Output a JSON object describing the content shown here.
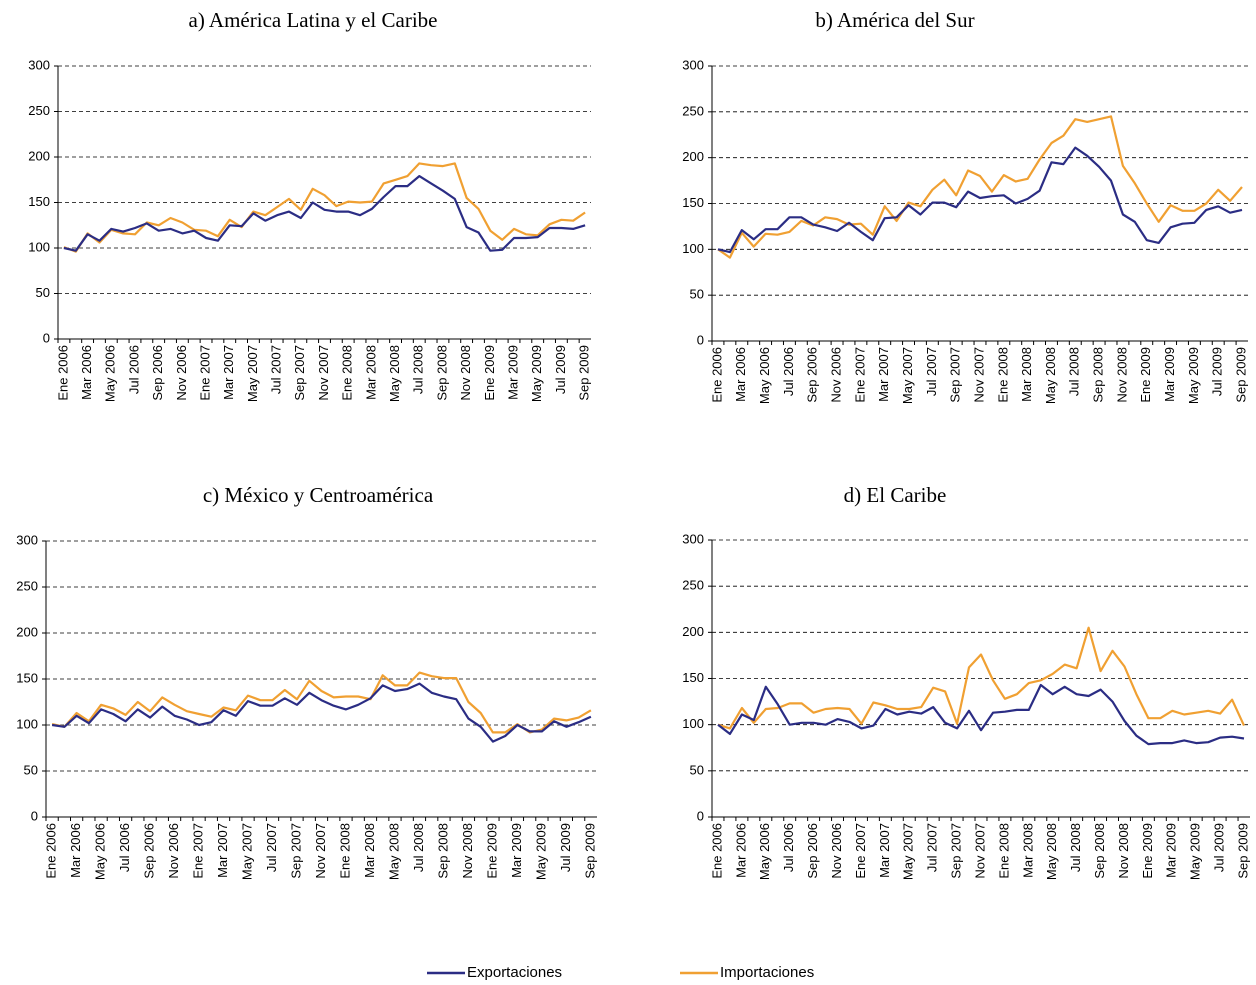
{
  "legend": [
    {
      "name": "Exportaciones",
      "color": "#2b2d84"
    },
    {
      "name": "Importaciones",
      "color": "#f0a032"
    }
  ],
  "chart_data": [
    {
      "type": "line",
      "title": "a) América Latina y el Caribe",
      "categories": [
        "Ene 2006",
        null,
        "Mar 2006",
        null,
        "May 2006",
        null,
        "Jul 2006",
        null,
        "Sep 2006",
        null,
        "Nov 2006",
        null,
        "Ene 2007",
        null,
        "Mar 2007",
        null,
        "May 2007",
        null,
        "Jul 2007",
        null,
        "Sep 2007",
        null,
        "Nov 2007",
        null,
        "Ene 2008",
        null,
        "Mar 2008",
        null,
        "May 2008",
        null,
        "Jul 2008",
        null,
        "Sep 2008",
        null,
        "Nov 2008",
        null,
        "Ene 2009",
        null,
        "Mar 2009",
        null,
        "May 2009",
        null,
        "Jul 2009",
        null,
        "Sep 2009"
      ],
      "series": [
        {
          "values": [
            100,
            97,
            115,
            108,
            121,
            118,
            122,
            127,
            119,
            121,
            116,
            119,
            111,
            108,
            125,
            124,
            138,
            130,
            136,
            140,
            133,
            150,
            142,
            140,
            140,
            136,
            143,
            156,
            168,
            168,
            179,
            171,
            163,
            154,
            123,
            117,
            97,
            98,
            111,
            111,
            112,
            122,
            122,
            121,
            125
          ]
        },
        {
          "values": [
            101,
            96,
            116,
            106,
            120,
            116,
            115,
            128,
            125,
            133,
            128,
            120,
            119,
            113,
            131,
            123,
            140,
            136,
            145,
            154,
            142,
            165,
            158,
            146,
            151,
            150,
            151,
            171,
            175,
            179,
            193,
            191,
            190,
            193,
            155,
            143,
            119,
            109,
            121,
            115,
            114,
            126,
            131,
            130,
            139
          ]
        }
      ],
      "ylim": [
        0,
        300
      ],
      "yticks": [
        0,
        50,
        100,
        150,
        200,
        250,
        300
      ],
      "grid": true
    },
    {
      "type": "line",
      "title": "b) América del Sur",
      "categories": [
        "Ene 2006",
        null,
        "Mar 2006",
        null,
        "May 2006",
        null,
        "Jul 2006",
        null,
        "Sep 2006",
        null,
        "Nov 2006",
        null,
        "Ene 2007",
        null,
        "Mar 2007",
        null,
        "May 2007",
        null,
        "Jul 2007",
        null,
        "Sep 2007",
        null,
        "Nov 2007",
        null,
        "Ene 2008",
        null,
        "Mar 2008",
        null,
        "May 2008",
        null,
        "Jul 2008",
        null,
        "Sep 2008",
        null,
        "Nov 2008",
        null,
        "Ene 2009",
        null,
        "Mar 2009",
        null,
        "May 2009",
        null,
        "Jul 2009",
        null,
        "Sep 2009"
      ],
      "series": [
        {
          "values": [
            100,
            97,
            121,
            111,
            122,
            122,
            135,
            135,
            127,
            124,
            120,
            129,
            119,
            110,
            134,
            135,
            148,
            138,
            151,
            151,
            146,
            163,
            156,
            158,
            159,
            150,
            155,
            164,
            195,
            193,
            211,
            202,
            190,
            175,
            138,
            130,
            110,
            107,
            124,
            128,
            129,
            143,
            147,
            140,
            143
          ]
        },
        {
          "values": [
            100,
            91,
            118,
            103,
            117,
            116,
            119,
            131,
            126,
            135,
            133,
            127,
            128,
            116,
            147,
            131,
            151,
            147,
            165,
            176,
            159,
            186,
            180,
            163,
            181,
            174,
            177,
            198,
            216,
            224,
            242,
            239,
            242,
            245,
            191,
            172,
            150,
            130,
            148,
            142,
            142,
            150,
            165,
            153,
            168
          ]
        }
      ],
      "ylim": [
        0,
        300
      ],
      "yticks": [
        0,
        50,
        100,
        150,
        200,
        250,
        300
      ],
      "grid": true
    },
    {
      "type": "line",
      "title": "c) México y Centroamérica",
      "categories": [
        "Ene 2006",
        null,
        "Mar 2006",
        null,
        "May 2006",
        null,
        "Jul 2006",
        null,
        "Sep 2006",
        null,
        "Nov 2006",
        null,
        "Ene 2007",
        null,
        "Mar 2007",
        null,
        "May 2007",
        null,
        "Jul 2007",
        null,
        "Sep 2007",
        null,
        "Nov 2007",
        null,
        "Ene 2008",
        null,
        "Mar 2008",
        null,
        "May 2008",
        null,
        "Jul 2008",
        null,
        "Sep 2008",
        null,
        "Nov 2008",
        null,
        "Ene 2009",
        null,
        "Mar 2009",
        null,
        "May 2009",
        null,
        "Jul 2009",
        null,
        "Sep 2009"
      ],
      "series": [
        {
          "values": [
            100,
            98,
            110,
            102,
            117,
            112,
            104,
            117,
            108,
            120,
            110,
            106,
            100,
            103,
            116,
            110,
            126,
            121,
            121,
            129,
            122,
            135,
            127,
            121,
            117,
            122,
            129,
            143,
            137,
            139,
            145,
            135,
            131,
            128,
            107,
            98,
            82,
            88,
            100,
            93,
            93,
            104,
            98,
            103,
            109
          ]
        },
        {
          "values": [
            101,
            98,
            113,
            104,
            122,
            118,
            111,
            125,
            115,
            130,
            122,
            115,
            112,
            109,
            119,
            116,
            132,
            127,
            127,
            138,
            128,
            148,
            137,
            130,
            131,
            131,
            128,
            154,
            143,
            143,
            157,
            153,
            151,
            151,
            125,
            113,
            92,
            92,
            101,
            92,
            95,
            107,
            105,
            108,
            116
          ]
        }
      ],
      "ylim": [
        0,
        300
      ],
      "yticks": [
        0,
        50,
        100,
        150,
        200,
        250,
        300
      ],
      "grid": true
    },
    {
      "type": "line",
      "title": "d) El Caribe",
      "categories": [
        "Ene 2006",
        null,
        "Mar 2006",
        null,
        "May 2006",
        null,
        "Jul 2006",
        null,
        "Sep 2006",
        null,
        "Nov 2006",
        null,
        "Ene 2007",
        null,
        "Mar 2007",
        null,
        "May 2007",
        null,
        "Jul 2007",
        null,
        "Sep 2007",
        null,
        "Nov 2007",
        null,
        "Ene 2008",
        null,
        "Mar 2008",
        null,
        "May 2008",
        null,
        "Jul 2008",
        null,
        "Sep 2008",
        null,
        "Nov 2008",
        null,
        "Ene 2009",
        null,
        "Mar 2009",
        null,
        "May 2009",
        null,
        "Jul 2009",
        null,
        "Sep 2009"
      ],
      "series": [
        {
          "values": [
            100,
            90,
            111,
            105,
            141,
            122,
            100,
            102,
            102,
            100,
            106,
            103,
            96,
            99,
            117,
            111,
            114,
            112,
            119,
            102,
            96,
            115,
            94,
            113,
            114,
            116,
            116,
            143,
            133,
            141,
            133,
            131,
            138,
            125,
            104,
            88,
            79,
            80,
            80,
            83,
            80,
            81,
            86,
            87,
            85
          ]
        },
        {
          "values": [
            100,
            96,
            118,
            102,
            117,
            118,
            123,
            123,
            113,
            117,
            118,
            117,
            101,
            124,
            121,
            117,
            117,
            119,
            140,
            136,
            101,
            162,
            176,
            148,
            128,
            133,
            145,
            148,
            155,
            165,
            161,
            205,
            158,
            180,
            163,
            133,
            107,
            107,
            115,
            111,
            113,
            115,
            112,
            127,
            99
          ]
        }
      ],
      "ylim": [
        0,
        300
      ],
      "yticks": [
        0,
        50,
        100,
        150,
        200,
        250,
        300
      ],
      "grid": true
    }
  ]
}
